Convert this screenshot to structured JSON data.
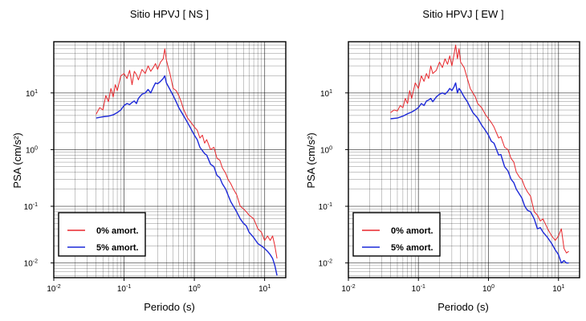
{
  "chart_data": [
    {
      "type": "line",
      "title": "Sitio HPVJ [ NS ]",
      "xlabel": "Periodo (s)",
      "ylabel": "PSA (cm/s²)",
      "xscale": "log",
      "yscale": "log",
      "xlim": [
        0.01,
        20
      ],
      "ylim": [
        0.0055,
        80
      ],
      "x_ticks": [
        {
          "base": "10",
          "exp": "-2"
        },
        {
          "base": "10",
          "exp": "-1"
        },
        {
          "base": "10",
          "exp": "0"
        },
        {
          "base": "10",
          "exp": "1"
        }
      ],
      "y_ticks": [
        {
          "base": "10",
          "exp": "-2"
        },
        {
          "base": "10",
          "exp": "-1"
        },
        {
          "base": "10",
          "exp": "0"
        },
        {
          "base": "10",
          "exp": "1"
        }
      ],
      "grid": true,
      "legend_position": "bottom-left",
      "series": [
        {
          "name": "0% amort.",
          "color": "#e8262b",
          "x": [
            0.04,
            0.045,
            0.05,
            0.055,
            0.06,
            0.065,
            0.07,
            0.075,
            0.08,
            0.09,
            0.1,
            0.11,
            0.12,
            0.13,
            0.14,
            0.15,
            0.16,
            0.18,
            0.2,
            0.22,
            0.24,
            0.26,
            0.28,
            0.3,
            0.33,
            0.36,
            0.38,
            0.4,
            0.42,
            0.45,
            0.5,
            0.55,
            0.6,
            0.65,
            0.7,
            0.8,
            0.9,
            1.0,
            1.1,
            1.2,
            1.3,
            1.4,
            1.5,
            1.7,
            1.9,
            2.1,
            2.3,
            2.5,
            2.8,
            3.0,
            3.3,
            3.6,
            4.0,
            4.5,
            5.0,
            5.5,
            6.0,
            7.0,
            8.0,
            9.0,
            10.0,
            11.0,
            12.0,
            13.0,
            14.0,
            15.0
          ],
          "y": [
            4.2,
            5.5,
            5.0,
            9.0,
            7.0,
            12.0,
            8.5,
            14.0,
            11.0,
            20.0,
            22.0,
            18.0,
            25.0,
            14.0,
            24.0,
            21.0,
            17.0,
            26.0,
            22.0,
            30.0,
            24.0,
            28.0,
            33.0,
            26.0,
            35.0,
            40.0,
            60.0,
            38.0,
            30.0,
            22.0,
            12.0,
            11.0,
            9.0,
            7.0,
            5.2,
            3.6,
            3.0,
            2.5,
            2.2,
            1.6,
            1.8,
            1.3,
            1.5,
            1.0,
            1.1,
            0.7,
            0.65,
            0.48,
            0.38,
            0.3,
            0.25,
            0.2,
            0.16,
            0.1,
            0.09,
            0.08,
            0.07,
            0.06,
            0.04,
            0.035,
            0.025,
            0.03,
            0.025,
            0.03,
            0.02,
            0.012
          ]
        },
        {
          "name": "5% amort.",
          "color": "#1c28d8",
          "x": [
            0.04,
            0.05,
            0.06,
            0.07,
            0.08,
            0.09,
            0.1,
            0.11,
            0.12,
            0.13,
            0.14,
            0.15,
            0.16,
            0.18,
            0.2,
            0.22,
            0.24,
            0.26,
            0.28,
            0.3,
            0.33,
            0.36,
            0.38,
            0.4,
            0.45,
            0.5,
            0.55,
            0.6,
            0.7,
            0.8,
            0.9,
            1.0,
            1.1,
            1.2,
            1.4,
            1.5,
            1.7,
            1.9,
            2.1,
            2.3,
            2.5,
            2.8,
            3.0,
            3.3,
            3.6,
            4.0,
            4.5,
            5.0,
            5.5,
            6.0,
            7.0,
            8.0,
            9.0,
            10.0,
            11.0,
            12.0,
            13.0,
            14.0,
            15.0
          ],
          "y": [
            3.6,
            3.8,
            3.9,
            4.1,
            4.5,
            5.0,
            6.0,
            6.5,
            6.2,
            6.8,
            7.2,
            6.5,
            8.0,
            9.5,
            10.0,
            11.5,
            10.0,
            12.5,
            15.0,
            14.5,
            16.0,
            18.0,
            20.0,
            15.0,
            11.5,
            9.0,
            7.0,
            5.5,
            4.0,
            3.0,
            2.3,
            1.8,
            1.5,
            1.1,
            0.85,
            0.8,
            0.55,
            0.5,
            0.35,
            0.32,
            0.25,
            0.2,
            0.16,
            0.12,
            0.1,
            0.08,
            0.06,
            0.05,
            0.045,
            0.035,
            0.028,
            0.022,
            0.02,
            0.018,
            0.016,
            0.014,
            0.012,
            0.009,
            0.006
          ]
        }
      ]
    },
    {
      "type": "line",
      "title": "Sitio HPVJ [ EW ]",
      "xlabel": "Periodo (s)",
      "ylabel": "PSA (cm/s²)",
      "xscale": "log",
      "yscale": "log",
      "xlim": [
        0.01,
        20
      ],
      "ylim": [
        0.0055,
        80
      ],
      "x_ticks": [
        {
          "base": "10",
          "exp": "-2"
        },
        {
          "base": "10",
          "exp": "-1"
        },
        {
          "base": "10",
          "exp": "0"
        },
        {
          "base": "10",
          "exp": "1"
        }
      ],
      "y_ticks": [
        {
          "base": "10",
          "exp": "-2"
        },
        {
          "base": "10",
          "exp": "-1"
        },
        {
          "base": "10",
          "exp": "0"
        },
        {
          "base": "10",
          "exp": "1"
        }
      ],
      "grid": true,
      "legend_position": "bottom-left",
      "series": [
        {
          "name": "0% amort.",
          "color": "#e8262b",
          "x": [
            0.04,
            0.045,
            0.05,
            0.055,
            0.06,
            0.065,
            0.07,
            0.075,
            0.08,
            0.09,
            0.1,
            0.11,
            0.12,
            0.13,
            0.14,
            0.15,
            0.16,
            0.18,
            0.2,
            0.22,
            0.24,
            0.26,
            0.28,
            0.3,
            0.32,
            0.34,
            0.36,
            0.38,
            0.4,
            0.45,
            0.5,
            0.55,
            0.6,
            0.65,
            0.7,
            0.8,
            0.9,
            1.0,
            1.1,
            1.2,
            1.4,
            1.5,
            1.7,
            1.9,
            2.1,
            2.3,
            2.5,
            2.8,
            3.0,
            3.3,
            3.6,
            4.0,
            4.5,
            5.0,
            5.5,
            6.0,
            7.0,
            8.0,
            9.0,
            10.0,
            11.0,
            12.0,
            13.0,
            14.0
          ],
          "y": [
            4.5,
            5.0,
            4.8,
            6.0,
            5.5,
            8.0,
            6.5,
            11.0,
            8.0,
            15.0,
            12.0,
            20.0,
            16.0,
            22.0,
            18.0,
            30.0,
            22.0,
            25.0,
            35.0,
            28.0,
            40.0,
            32.0,
            45.0,
            30.0,
            45.0,
            70.0,
            40.0,
            60.0,
            35.0,
            28.0,
            18.0,
            12.0,
            10.0,
            8.5,
            6.5,
            5.5,
            4.2,
            3.5,
            3.0,
            2.5,
            1.6,
            1.7,
            1.1,
            1.0,
            0.7,
            0.6,
            0.4,
            0.32,
            0.3,
            0.22,
            0.18,
            0.15,
            0.08,
            0.07,
            0.055,
            0.06,
            0.04,
            0.03,
            0.025,
            0.03,
            0.04,
            0.018,
            0.015,
            0.016
          ]
        },
        {
          "name": "5% amort.",
          "color": "#1c28d8",
          "x": [
            0.04,
            0.05,
            0.06,
            0.07,
            0.08,
            0.09,
            0.1,
            0.11,
            0.12,
            0.13,
            0.14,
            0.15,
            0.16,
            0.18,
            0.2,
            0.22,
            0.24,
            0.26,
            0.28,
            0.3,
            0.32,
            0.34,
            0.36,
            0.38,
            0.4,
            0.45,
            0.5,
            0.55,
            0.6,
            0.7,
            0.8,
            0.9,
            1.0,
            1.1,
            1.2,
            1.4,
            1.5,
            1.7,
            1.9,
            2.1,
            2.3,
            2.5,
            2.8,
            3.0,
            3.3,
            3.6,
            4.0,
            4.5,
            5.0,
            5.5,
            6.0,
            7.0,
            8.0,
            9.0,
            10.0,
            11.0,
            12.0,
            13.0,
            14.0
          ],
          "y": [
            3.5,
            3.6,
            3.9,
            4.3,
            4.6,
            5.0,
            5.5,
            6.5,
            6.0,
            7.2,
            7.5,
            8.0,
            7.0,
            8.5,
            9.5,
            10.0,
            9.5,
            10.5,
            12.0,
            11.0,
            12.5,
            15.0,
            10.0,
            12.0,
            11.0,
            8.5,
            7.0,
            5.5,
            4.5,
            3.6,
            2.7,
            2.2,
            1.8,
            1.4,
            1.3,
            0.8,
            0.82,
            0.5,
            0.42,
            0.3,
            0.26,
            0.2,
            0.16,
            0.14,
            0.1,
            0.085,
            0.08,
            0.06,
            0.04,
            0.042,
            0.035,
            0.028,
            0.022,
            0.017,
            0.014,
            0.01,
            0.011,
            0.01,
            0.01
          ]
        }
      ]
    }
  ]
}
